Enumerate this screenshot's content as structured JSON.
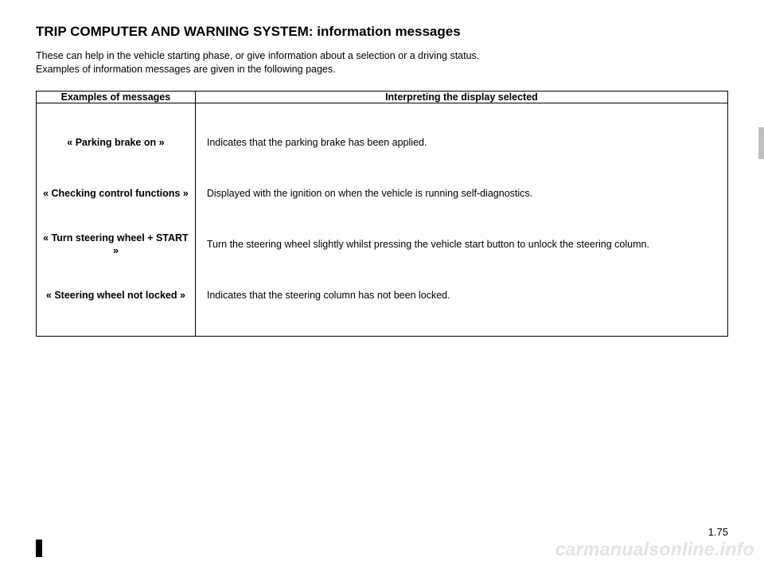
{
  "title": "TRIP COMPUTER AND WARNING SYSTEM: information messages",
  "intro_line1": "These can help in the vehicle starting phase, or give information about a selection or a driving status.",
  "intro_line2": "Examples of information messages are given in the following pages.",
  "table": {
    "header_left": "Examples of messages",
    "header_right": "Interpreting the display selected",
    "rows": [
      {
        "msg": "« Parking brake on »",
        "desc": "Indicates that the parking brake has been applied."
      },
      {
        "msg": "« Checking control functions »",
        "desc": "Displayed with the ignition on when the vehicle is running self-diagnostics."
      },
      {
        "msg": "« Turn steering wheel + START »",
        "desc": "Turn the steering wheel slightly whilst pressing the vehicle start button to unlock the steering column."
      },
      {
        "msg": "« Steering wheel not locked »",
        "desc": "Indicates that the steering column has not been locked."
      }
    ]
  },
  "page_number": "1.75",
  "watermark": "carmanualsonline.info"
}
